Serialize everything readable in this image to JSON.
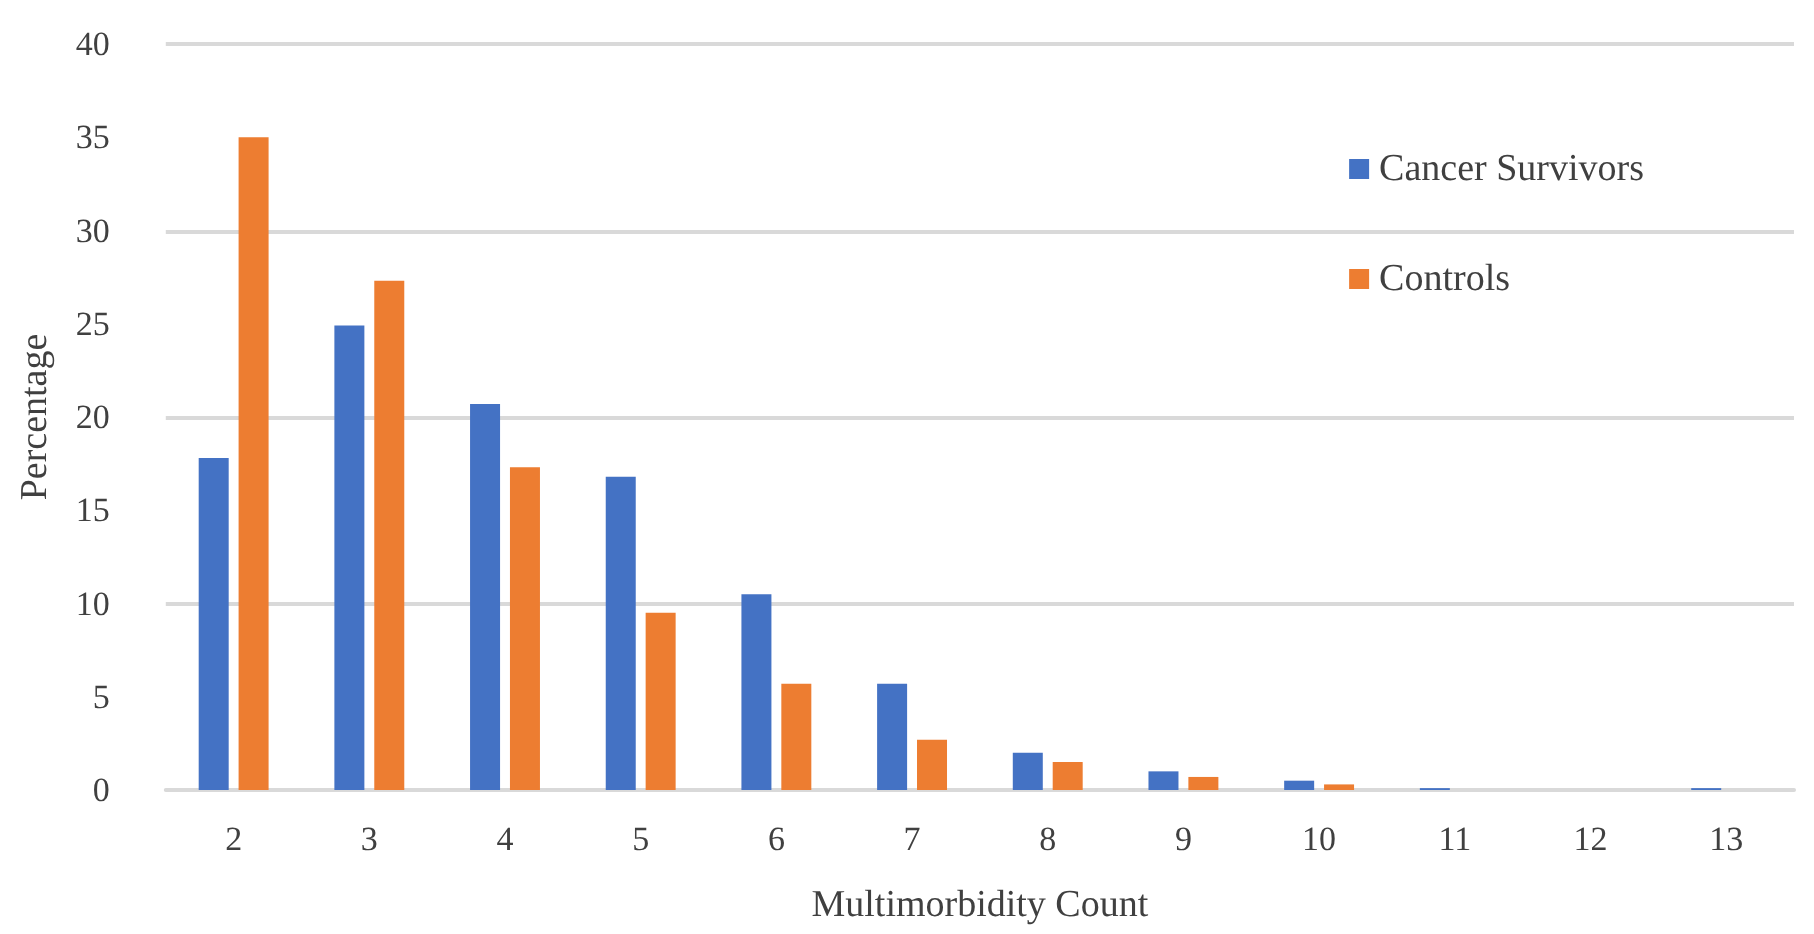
{
  "chart_data": {
    "type": "bar",
    "xlabel": "Multimorbidity Count",
    "ylabel": "Percentage",
    "categories": [
      "2",
      "3",
      "4",
      "5",
      "6",
      "7",
      "8",
      "9",
      "10",
      "11",
      "12",
      "13"
    ],
    "series": [
      {
        "name": "Cancer Survivors",
        "color": "#4472c4",
        "values": [
          17.8,
          24.9,
          20.7,
          16.8,
          10.5,
          5.7,
          2.0,
          1.0,
          0.5,
          0.1,
          0,
          0.1
        ]
      },
      {
        "name": "Controls",
        "color": "#ed7d31",
        "values": [
          35.0,
          27.3,
          17.3,
          9.5,
          5.7,
          2.7,
          1.5,
          0.7,
          0.3,
          0,
          0,
          0
        ]
      }
    ],
    "ylim": [
      0,
      40
    ],
    "yticks": [
      0,
      5,
      10,
      15,
      20,
      25,
      30,
      35,
      40
    ],
    "grid": "y",
    "legend": "top right"
  }
}
